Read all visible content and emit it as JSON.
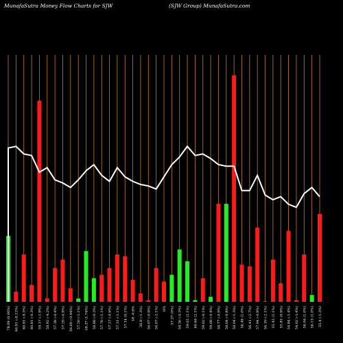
{
  "header": {
    "left_title": "MunafaSutra  Money Flow  Charts for SJW",
    "right_title": "(SJW Group) MunafaSutra.com"
  },
  "colors": {
    "background": "#000000",
    "grid": "#c87f1a",
    "up": "#22ee22",
    "down": "#ff1a1a",
    "price_line": "#ffffff"
  },
  "chart_data": {
    "type": "bar",
    "grid": true,
    "legend": "none",
    "categories": [
      "78.09 (0.00%)",
      "60.91 (-8.12%)",
      "60.91 (-9.3%)",
      "60.81 (-0.3%)",
      "59.17 (-1.9%)",
      "58.92 (-4.2%)",
      "57.38 (-0.4%)",
      "57.29 (-0.9%)",
      "56.69 (-0.94%)",
      "57.50 (-1.1%)",
      "58.37 (1.74%)",
      "58.88 (-0.3%)",
      "57.76 (-1.1%)",
      "57.27 (-0.9%)",
      "57.31 (-1.1%)",
      "57.34 (0.1%)",
      "58 -0.6%",
      "56.8 (-1.3%)",
      "56.07 (-0.9%)",
      "56.07 (-2.1%)",
      "0%",
      "57.37 (0%)",
      "58.36 (-0.3%)",
      "59.02 (2.1%)",
      "60.66 (2.1%)",
      "59.02 (-0.1%)",
      "59.08 (-0.4%)",
      "58.77 (-0.9%)",
      "58.04 (-0.8%)",
      "58.04 (-1.3%)",
      "56.46 (1.0%)",
      "56.41 (-2.7%)",
      "57.94 (-0.9%)",
      "56.19 (-2.1%)",
      "55.42 (1.1%)",
      "55.85 (0.9%)",
      "54.84 (-1.4%)",
      "54.02 (-1.4%)",
      "56.06 (1.0%)",
      "56.13 (1.0%)",
      "55.4 (-1.3%)"
    ],
    "direction": [
      "up",
      "down",
      "down",
      "down",
      "down",
      "down",
      "down",
      "down",
      "down",
      "up",
      "up",
      "up",
      "down",
      "down",
      "down",
      "down",
      "down",
      "down",
      "down",
      "down",
      "down",
      "up",
      "up",
      "up",
      "up",
      "down",
      "up",
      "down",
      "up",
      "down",
      "down",
      "down",
      "down",
      "up",
      "down",
      "down",
      "down",
      "down",
      "down",
      "up",
      "down"
    ],
    "volume": [
      39,
      6,
      28,
      10,
      119,
      2,
      20,
      25,
      8,
      2,
      30,
      14,
      16,
      20,
      28,
      27,
      13,
      5,
      1,
      20,
      12,
      16,
      31,
      24,
      1,
      14,
      3,
      58,
      58,
      134,
      22,
      21,
      44,
      0,
      25,
      11,
      42,
      1,
      28,
      4,
      52
    ],
    "price": [
      78.09,
      78.2,
      77.7,
      77.6,
      76.5,
      76.8,
      76.0,
      75.8,
      75.5,
      76.0,
      76.6,
      77.0,
      76.3,
      75.9,
      76.8,
      76.2,
      75.9,
      75.7,
      75.6,
      75.4,
      76.2,
      77.0,
      77.5,
      78.2,
      77.6,
      77.7,
      77.4,
      77.0,
      76.9,
      76.9,
      75.3,
      75.3,
      76.3,
      75.0,
      74.7,
      74.9,
      74.4,
      74.2,
      75.1,
      75.5,
      74.9
    ],
    "volume_range": [
      0,
      140
    ],
    "price_range": [
      68,
      86
    ]
  }
}
